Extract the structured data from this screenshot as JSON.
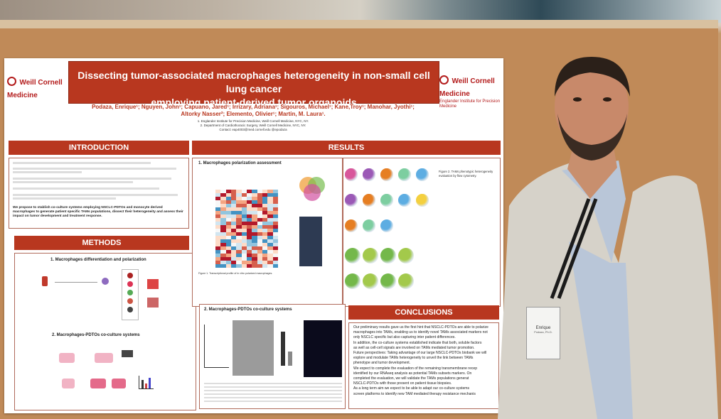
{
  "poster": {
    "title_line1": "Dissecting tumor-associated macrophages heterogeneity in non-small cell lung cancer",
    "title_line2": "employing patient-derived tumor organoids",
    "logo_left": "Weill Cornell Medicine",
    "logo_right": "Weill Cornell Medicine",
    "logo_right_sub": "Englander Institute for Precision Medicine",
    "authors": "Podaza, Enrique¹; Nguyen, John¹; Capuano, Jared¹; Irrizary, Adriana¹; Sigouros, Michael¹; Kane,Troy¹; Manohar, Jyothi¹; Altorky Nasser²; Elemento, Olivier¹; Martin, M. Laura¹.",
    "affiliation1": "1. Englander Institute for Precision Medicine, Weill Cornell Medicine, NYC, NY.",
    "affiliation2": "2. Department of Cardiothoracic Surgery, Weill Cornell Medicine, NYC, NY.",
    "contact": "Contact: eap4003@med.cornell.edu  @epodaza",
    "sections": {
      "introduction": "INTRODUCTION",
      "methods": "METHODS",
      "results": "RESULTS",
      "conclusions": "CONCLUSIONS"
    },
    "intro_bold": "We propose to stablish co-culture systems employing NSCLC-PDTOs and monocyte derived macrophages to generate patient specific TAMs populations, dissect their heterogeneity and assess their impact on tumor development and treatment response.",
    "methods_sub1": "1. Macrophages differentiation and polarization",
    "methods_sub2": "2. Macrophages-PDTOs co-culture systems",
    "results_sub1": "1. Macrophages polarization assessment",
    "results_sub2": "2. Macrophages-PDTOs co-culture systems",
    "fig1_caption": "Figure 1. Transcriptional profile of in vitro polarized macrophages.",
    "fig2_caption": "Figure 2. TAMs phenotypic heterogeneity evaluation by flow cytometry.",
    "conclusions": [
      "Our preliminary results gave us the first hint that NSCLC-PDTOs are able to polarize",
      "macrophages into TAMs, enabling us to identify novel TAMs associated markers not",
      "only NSCLC specific but also capturing inter patient differences.",
      "In addition, the co-culture systems established indicate that both, soluble factors",
      "as well as cell-cell signals are involved on TAMs mediated tumor promotion.",
      "Future perspectives: Taking advantage of our large NSCLC-PDTOs biobank we will",
      "explore and modulate TAMs heterogeneity to unveil the link between TAMs",
      "phenotype and tumor development.",
      "We expect to complete the evaluation of the remaining transmembrane recep",
      "identified by our RNAseq analysis as potential TAMs subsets markers. On",
      "completed the evaluation, we will validate the TAMs populations generat",
      "NSCLC-PDTOs with those present on patient tissue biopsies.",
      "As a long term aim we expect to be able to adapt our co-culture systems",
      "screen platforms to identify new TAM mediated therapy resistance mechanis"
    ]
  },
  "badge": {
    "name": "Enrique",
    "line2": "Podaza, Ph.D."
  }
}
